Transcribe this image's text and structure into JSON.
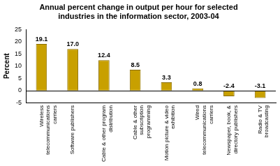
{
  "chart_data": {
    "type": "bar",
    "title": [
      "Annual percent change in output per hour for selected",
      "industries in the information sector, 2003-04"
    ],
    "y_label": "Percent",
    "categories": [
      "Wireless telecommunications carriers",
      "Software publishers",
      "Cable & other program distribution",
      "Cable & other subscription programming",
      "Motion picture & video exhibition",
      "Wired telecommunications carriers",
      "Newspaper, book, & directory publishers",
      "Radio & TV broadcasting"
    ],
    "values": [
      19.1,
      17.0,
      12.4,
      8.5,
      3.3,
      0.8,
      -2.4,
      -3.1
    ],
    "value_labels": [
      "19.1",
      "17.0",
      "12.4",
      "8.5",
      "3.3",
      "0.8",
      "-2.4",
      "-3.1"
    ],
    "color": "#c8a000",
    "ylim": [
      -5,
      25
    ],
    "yticks": [
      -5,
      0,
      5,
      10,
      15,
      20,
      25
    ],
    "grid": false,
    "data_labels": true
  }
}
